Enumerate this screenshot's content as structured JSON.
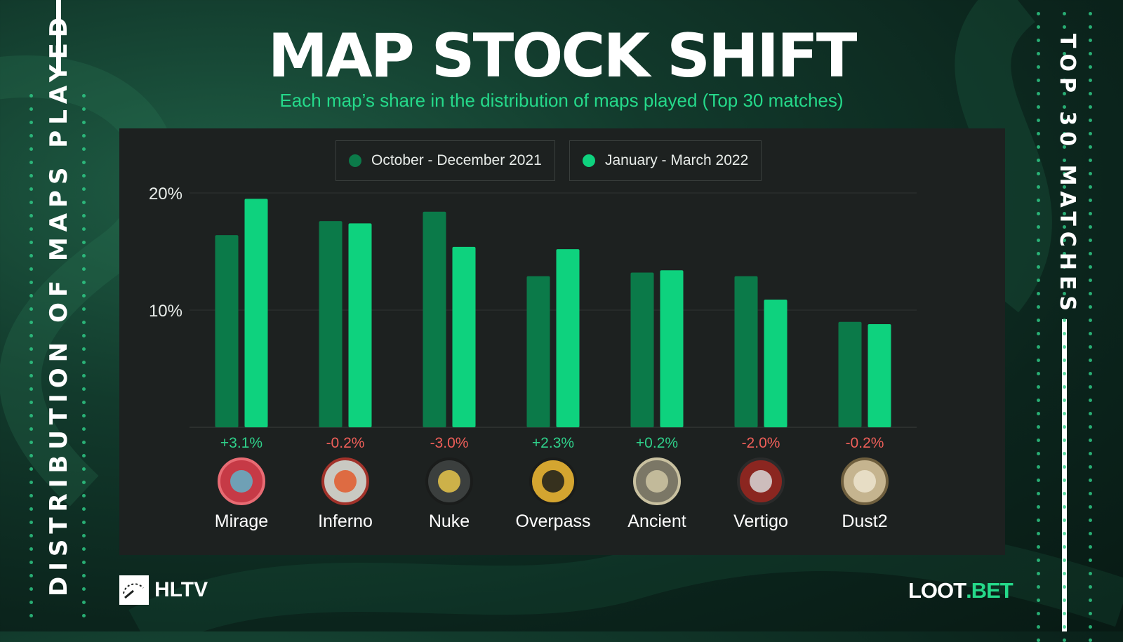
{
  "title": "MAP STOCK SHIFT",
  "subtitle": "Each map’s share in the distribution of maps played (Top 30 matches)",
  "side_title_left": "DISTRIBUTION OF MAPS PLAYED",
  "side_title_right": "TOP 30 MATCHES",
  "logos": {
    "hltv": "HLTV",
    "loot_main": "LOOT",
    "loot_accent": ".BET"
  },
  "colors": {
    "series1": "#0b7a49",
    "series2": "#0ed27e",
    "positive": "#2fd08a",
    "negative": "#ef5f59",
    "accent": "#25d98a"
  },
  "chart_data": {
    "type": "bar",
    "categories": [
      "Mirage",
      "Inferno",
      "Nuke",
      "Overpass",
      "Ancient",
      "Vertigo",
      "Dust2"
    ],
    "series": [
      {
        "name": "October - December 2021",
        "values": [
          16.4,
          17.6,
          18.4,
          12.9,
          13.2,
          12.9,
          9.0
        ]
      },
      {
        "name": "January - March 2022",
        "values": [
          19.5,
          17.4,
          15.4,
          15.2,
          13.4,
          10.9,
          8.8
        ]
      }
    ],
    "changes": [
      "+3.1%",
      "-0.2%",
      "-3.0%",
      "+2.3%",
      "+0.2%",
      "-2.0%",
      "-0.2%"
    ],
    "y_ticks": [
      {
        "value": 10,
        "label": "10%"
      },
      {
        "value": 20,
        "label": "20%"
      }
    ],
    "ylim": [
      0,
      20
    ],
    "grid": true,
    "legend": "top-center",
    "icons": [
      "mirage-map-icon",
      "inferno-map-icon",
      "nuke-map-icon",
      "overpass-map-icon",
      "ancient-map-icon",
      "vertigo-map-icon",
      "dust2-map-icon"
    ]
  }
}
